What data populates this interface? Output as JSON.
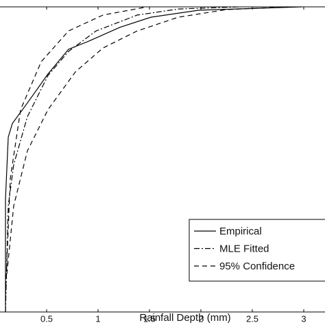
{
  "chart_data": {
    "type": "line",
    "x_label": "Rainfall Depth (mm)",
    "xlim": [
      0,
      3.2
    ],
    "ylim": [
      0,
      1
    ],
    "xticks": [
      0.5,
      1,
      1.5,
      2,
      2.5,
      3
    ],
    "series": [
      {
        "name": "Empirical",
        "color": "#000000",
        "dash": "solid",
        "x": [
          0.1,
          0.1,
          0.127,
          0.167,
          0.313,
          0.513,
          0.713,
          0.913,
          1.213,
          1.513,
          1.98,
          2.98
        ],
        "values": [
          0,
          0.37,
          0.573,
          0.618,
          0.685,
          0.78,
          0.861,
          0.888,
          0.933,
          0.966,
          0.989,
          1.0
        ]
      },
      {
        "name": "MLE Fitted",
        "color": "#000000",
        "dash": "dashdot",
        "x": [
          0.1,
          0.127,
          0.18,
          0.313,
          0.513,
          0.713,
          0.98,
          1.38,
          1.78,
          2.38
        ],
        "values": [
          0,
          0.348,
          0.483,
          0.64,
          0.775,
          0.854,
          0.921,
          0.973,
          0.993,
          1.0
        ]
      },
      {
        "name": "95% Confidence",
        "color": "#000000",
        "dash": "dashed",
        "x": [
          0.1,
          0.147,
          0.247,
          0.447,
          0.713,
          1.047,
          1.447
        ],
        "values": [
          0.056,
          0.438,
          0.663,
          0.82,
          0.921,
          0.973,
          0.998
        ],
        "lower": {
          "x": [
            0.113,
            0.18,
            0.313,
            0.513,
            0.78,
            1.047,
            1.38,
            1.78,
            2.247,
            2.847
          ],
          "values": [
            0.124,
            0.348,
            0.528,
            0.663,
            0.787,
            0.865,
            0.921,
            0.966,
            0.991,
            1.0
          ]
        }
      }
    ],
    "legend": "lower-right"
  }
}
